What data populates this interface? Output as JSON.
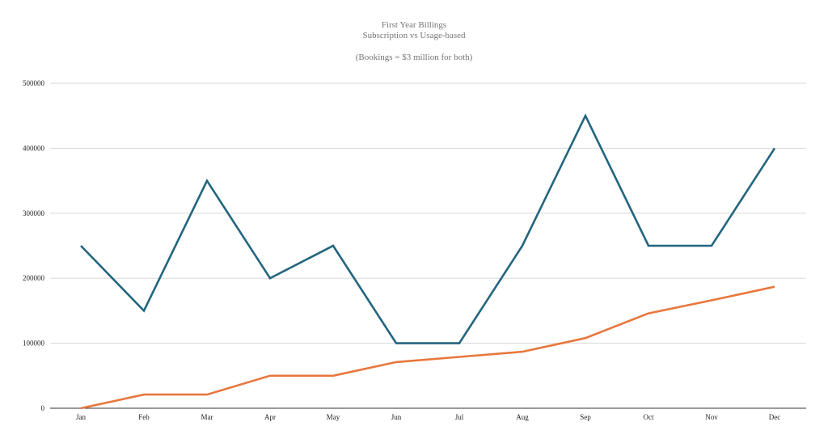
{
  "chart_data": {
    "type": "line",
    "title": "First Year Billings",
    "subtitle": "Subscription vs Usage-based",
    "annotation": "(Bookings = $3 million for both)",
    "xlabel": "",
    "ylabel": "",
    "categories": [
      "Jan",
      "Feb",
      "Mar",
      "Apr",
      "May",
      "Jun",
      "Jul",
      "Aug",
      "Sep",
      "Oct",
      "Nov",
      "Dec"
    ],
    "y_ticks": [
      "0",
      "100000",
      "200000",
      "300000",
      "400000",
      "500000"
    ],
    "ylim": [
      0,
      500000
    ],
    "grid": true,
    "legend": "none",
    "series": [
      {
        "color": "#23657f",
        "values": [
          250000,
          150000,
          350000,
          200000,
          250000,
          100000,
          100000,
          250000,
          450000,
          250000,
          250000,
          400000
        ]
      },
      {
        "color": "#e8773d",
        "values": [
          0,
          21000,
          21000,
          50000,
          50000,
          71000,
          79000,
          87000,
          108000,
          146000,
          166000,
          187000
        ]
      }
    ]
  },
  "colors": {
    "gridline": "#d9d9d9",
    "axis_line": "#333333",
    "title_text": "#757575"
  }
}
